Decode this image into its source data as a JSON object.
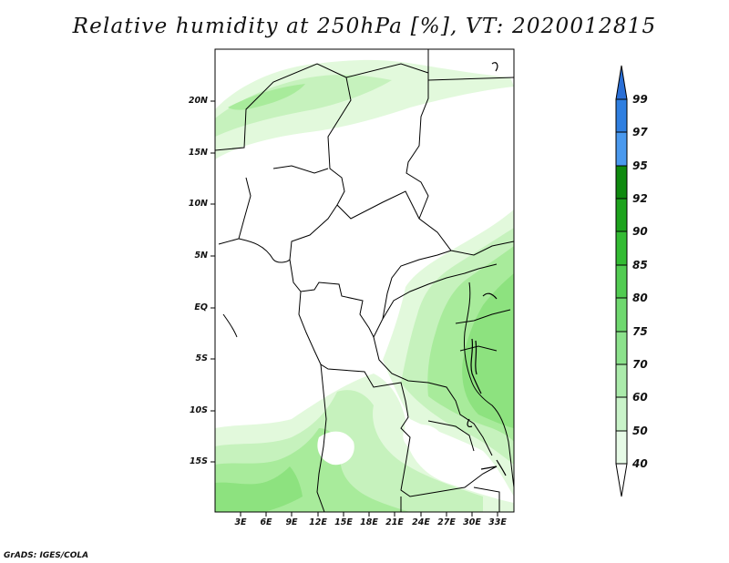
{
  "title": "Relative humidity at 250hPa [%], VT: 2020012815",
  "credit": "GrADS: IGES/COLA",
  "map": {
    "lat_labels": [
      "20N",
      "15N",
      "10N",
      "5N",
      "EQ",
      "5S",
      "10S",
      "15S"
    ],
    "lon_labels": [
      "3E",
      "6E",
      "9E",
      "12E",
      "15E",
      "18E",
      "21E",
      "24E",
      "27E",
      "30E",
      "33E"
    ],
    "colors": {
      "border": "#000000",
      "green_40": "#e8fbe3",
      "green_50": "#cdf4c6",
      "green_60": "#b4eda9",
      "green_70": "#9be690",
      "green_75": "#84de77"
    }
  },
  "colorbar": {
    "levels": [
      "99",
      "97",
      "95",
      "92",
      "90",
      "85",
      "80",
      "75",
      "70",
      "60",
      "50",
      "40"
    ],
    "colors": [
      "#2a6fd6",
      "#2f7fe0",
      "#4a99ee",
      "#0f8a0f",
      "#1da31d",
      "#33bb33",
      "#52cc52",
      "#6fd86f",
      "#8ce28c",
      "#abebab",
      "#c9f3c9",
      "#e6fae6",
      "#ffffff"
    ]
  }
}
